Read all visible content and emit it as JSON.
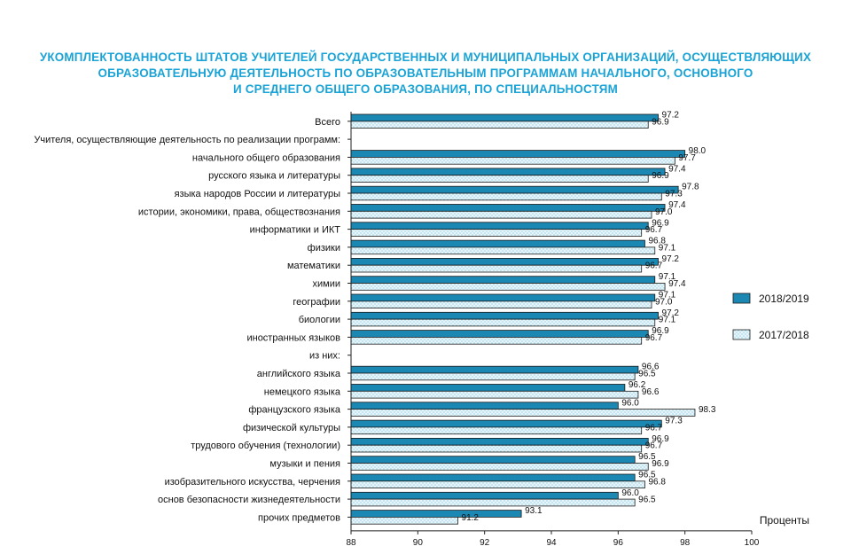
{
  "chart_data": {
    "type": "bar",
    "orientation": "horizontal",
    "title_lines": [
      "УКОМПЛЕКТОВАННОСТЬ ШТАТОВ УЧИТЕЛЕЙ ГОСУДАРСТВЕННЫХ И МУНИЦИПАЛЬНЫХ ОРГАНИЗАЦИЙ, ОСУЩЕСТВЛЯЮЩИХ",
      "ОБРАЗОВАТЕЛЬНУЮ ДЕЯТЕЛЬНОСТЬ ПО ОБРАЗОВАТЕЛЬНЫМ ПРОГРАММАМ НАЧАЛЬНОГО, ОСНОВНОГО",
      "И СРЕДНЕГО ОБЩЕГО ОБРАЗОВАНИЯ, ПО СПЕЦИАЛЬНОСТЯМ"
    ],
    "xlabel": "Проценты",
    "xlim": [
      88,
      100
    ],
    "xticks": [
      88,
      90,
      92,
      94,
      96,
      98,
      100
    ],
    "legend_position": "right",
    "series": [
      {
        "name": "2018/2019",
        "color": "#1b87b3",
        "pattern": "solid"
      },
      {
        "name": "2017/2018",
        "color": "#e6f5fa",
        "pattern": "dotted"
      }
    ],
    "rows": [
      {
        "label": "Всего",
        "values": [
          97.2,
          96.9
        ]
      },
      {
        "label": "Учителя, осуществляющие деятельность по реализации программ:",
        "values": null
      },
      {
        "label": "начального общего образования",
        "values": [
          98.0,
          97.7
        ]
      },
      {
        "label": "русского языка и литературы",
        "values": [
          97.4,
          96.9
        ]
      },
      {
        "label": "языка народов России и литературы",
        "values": [
          97.8,
          97.3
        ]
      },
      {
        "label": "истории, экономики, права, обществознания",
        "values": [
          97.4,
          97.0
        ]
      },
      {
        "label": "информатики и ИКТ",
        "values": [
          96.9,
          96.7
        ]
      },
      {
        "label": "физики",
        "values": [
          96.8,
          97.1
        ]
      },
      {
        "label": "математики",
        "values": [
          97.2,
          96.7
        ]
      },
      {
        "label": "химии",
        "values": [
          97.1,
          97.4
        ]
      },
      {
        "label": "географии",
        "values": [
          97.1,
          97.0
        ]
      },
      {
        "label": "биологии",
        "values": [
          97.2,
          97.1
        ]
      },
      {
        "label": "иностранных языков",
        "values": [
          96.9,
          96.7
        ]
      },
      {
        "label": "из них:",
        "values": null
      },
      {
        "label": "английского языка",
        "values": [
          96.6,
          96.5
        ]
      },
      {
        "label": "немецкого языка",
        "values": [
          96.2,
          96.6
        ]
      },
      {
        "label": "французского языка",
        "values": [
          96.0,
          98.3
        ]
      },
      {
        "label": "физической культуры",
        "values": [
          97.3,
          96.7
        ]
      },
      {
        "label": "трудового обучения (технологии)",
        "values": [
          96.9,
          96.7
        ]
      },
      {
        "label": "музыки и пения",
        "values": [
          96.5,
          96.9
        ]
      },
      {
        "label": "изобразительного искусства, черчения",
        "values": [
          96.5,
          96.8
        ]
      },
      {
        "label": "основ безопасности жизнедеятельности",
        "values": [
          96.0,
          96.5
        ]
      },
      {
        "label": "прочих предметов",
        "values": [
          93.1,
          91.2
        ]
      }
    ]
  }
}
